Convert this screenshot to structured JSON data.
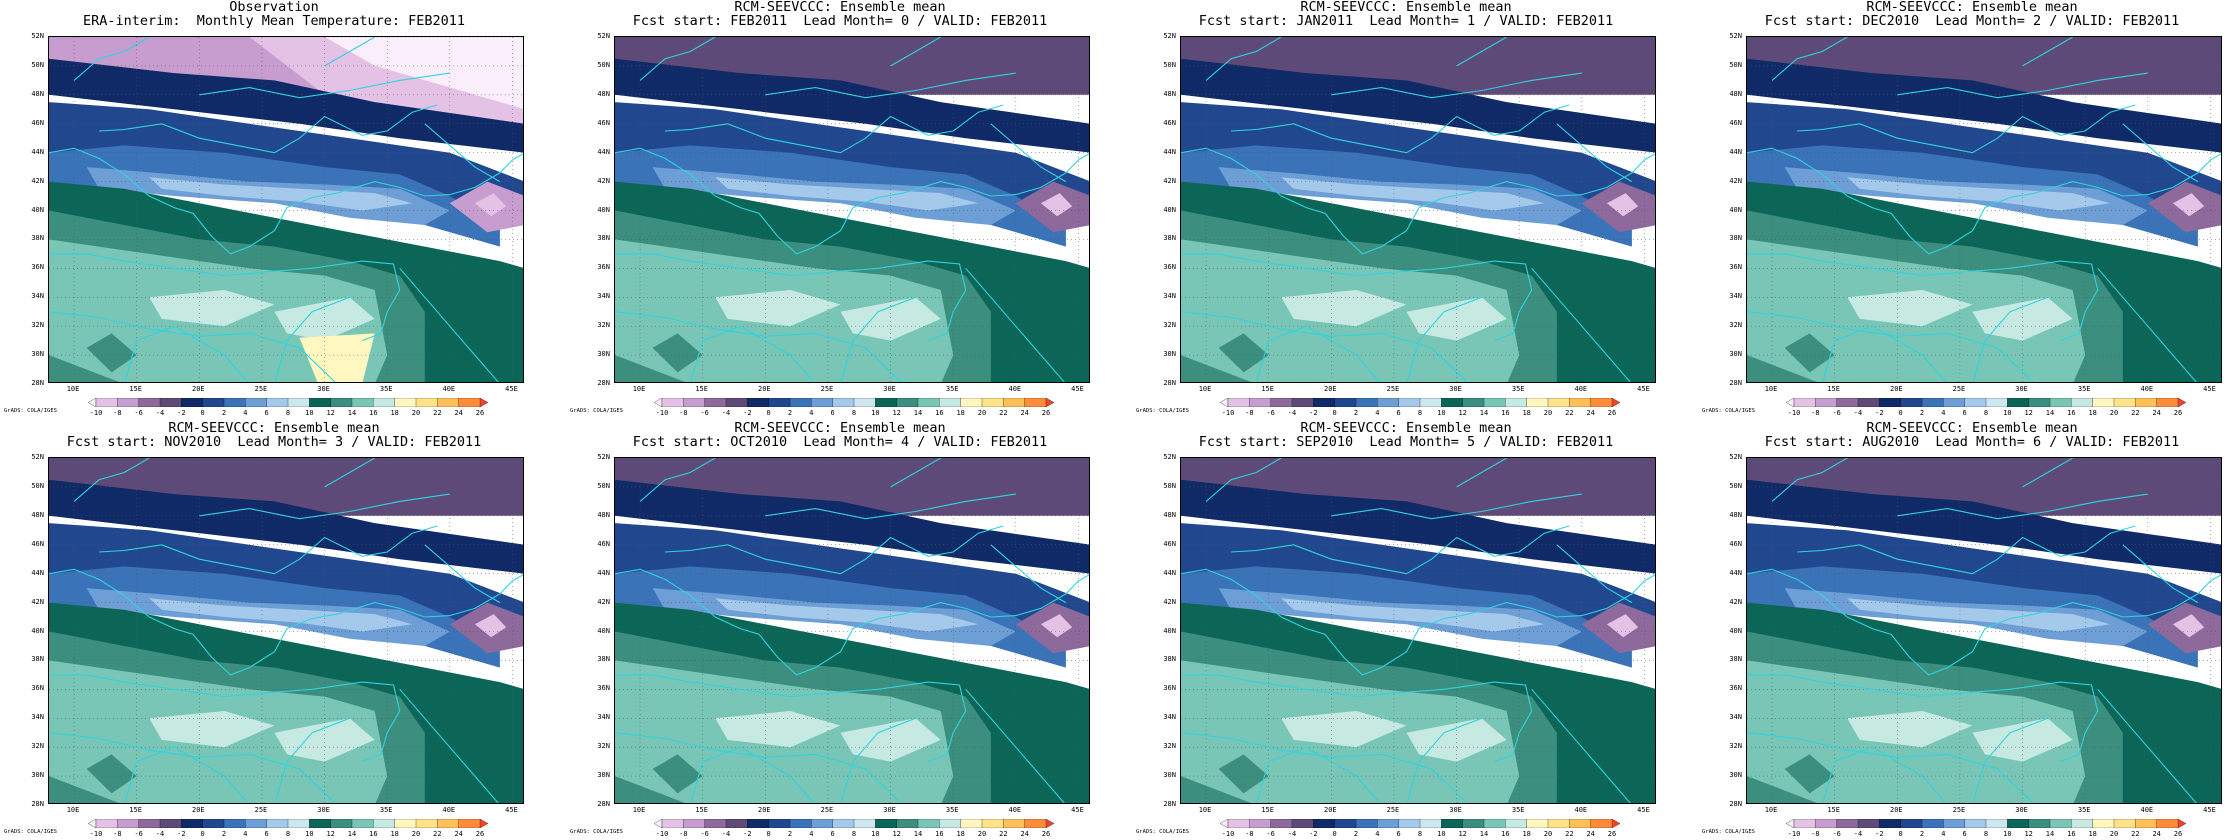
{
  "panels": [
    {
      "title1": "Observation",
      "title2": "ERA-interim:  Monthly Mean Temperature: FEB2011",
      "variant": "obs"
    },
    {
      "title1": "RCM-SEEVCCC: Ensemble mean",
      "title2": "Fcst start: FEB2011  Lead Month= 0 / VALID: FEB2011",
      "variant": "fc0"
    },
    {
      "title1": "RCM-SEEVCCC: Ensemble mean",
      "title2": "Fcst start: JAN2011  Lead Month= 1 / VALID: FEB2011",
      "variant": "fc1"
    },
    {
      "title1": "RCM-SEEVCCC: Ensemble mean",
      "title2": "Fcst start: DEC2010  Lead Month= 2 / VALID: FEB2011",
      "variant": "fc2"
    },
    {
      "title1": "RCM-SEEVCCC: Ensemble mean",
      "title2": "Fcst start: NOV2010  Lead Month= 3 / VALID: FEB2011",
      "variant": "fc3"
    },
    {
      "title1": "RCM-SEEVCCC: Ensemble mean",
      "title2": "Fcst start: OCT2010  Lead Month= 4 / VALID: FEB2011",
      "variant": "fc4"
    },
    {
      "title1": "RCM-SEEVCCC: Ensemble mean",
      "title2": "Fcst start: SEP2010  Lead Month= 5 / VALID: FEB2011",
      "variant": "fc5"
    },
    {
      "title1": "RCM-SEEVCCC: Ensemble mean",
      "title2": "Fcst start: AUG2010  Lead Month= 6 / VALID: FEB2011",
      "variant": "fc6"
    }
  ],
  "lat_labels": [
    "52N",
    "50N",
    "48N",
    "46N",
    "44N",
    "42N",
    "40N",
    "38N",
    "36N",
    "34N",
    "32N",
    "30N",
    "28N"
  ],
  "lon_labels": [
    "10E",
    "15E",
    "20E",
    "25E",
    "30E",
    "35E",
    "40E",
    "45E"
  ],
  "lon_values": [
    10,
    15,
    20,
    25,
    30,
    35,
    40,
    45
  ],
  "lat_values": [
    52,
    50,
    48,
    46,
    44,
    42,
    40,
    38,
    36,
    34,
    32,
    30,
    28
  ],
  "lon_range": [
    8,
    46
  ],
  "lat_range": [
    28,
    52
  ],
  "colorbar_labels": [
    "-10",
    "-8",
    "-6",
    "-4",
    "-2",
    "0",
    "2",
    "4",
    "6",
    "8",
    "10",
    "12",
    "14",
    "16",
    "18",
    "20",
    "22",
    "24",
    "26"
  ],
  "colorbar_colors": [
    "#fbeefb",
    "#e3c2e6",
    "#c79dd0",
    "#8e6a9c",
    "#5e4a78",
    "#0f2a66",
    "#21488f",
    "#3a73b8",
    "#6d9fd6",
    "#a5c9ea",
    "#cde6f0",
    "#0c6658",
    "#3c8f7e",
    "#7ac6b6",
    "#c6e9e2",
    "#fff7bf",
    "#ffe28a",
    "#ffc05a",
    "#ff8c3c",
    "#f0442a"
  ],
  "credit": "GrADS: COLA/IGES"
}
